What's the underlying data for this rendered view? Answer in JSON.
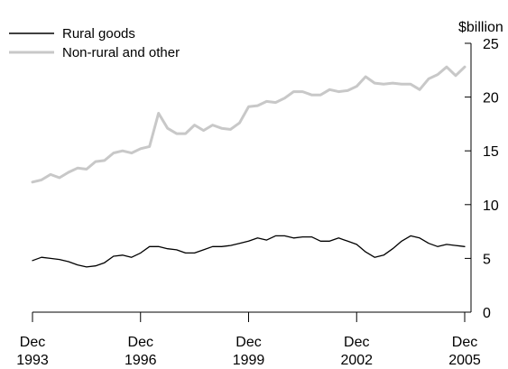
{
  "chart_data": {
    "type": "line",
    "ylabel": "$billion",
    "ylim": [
      0,
      25
    ],
    "yticks": [
      0,
      5,
      10,
      15,
      20,
      25
    ],
    "xticks": [
      {
        "line1": "Dec",
        "line2": "1993"
      },
      {
        "line1": "Dec",
        "line2": "1996"
      },
      {
        "line1": "Dec",
        "line2": "1999"
      },
      {
        "line1": "Dec",
        "line2": "2002"
      },
      {
        "line1": "Dec",
        "line2": "2005"
      }
    ],
    "x_start": "Dec 1993",
    "x_end": "Dec 2005",
    "x_frequency": "quarterly",
    "legend_position": "top-left",
    "series": [
      {
        "name": "Rural goods",
        "color": "#000000",
        "values": [
          4.8,
          5.1,
          5.0,
          4.9,
          4.7,
          4.4,
          4.2,
          4.3,
          4.6,
          5.2,
          5.3,
          5.1,
          5.5,
          6.1,
          6.1,
          5.9,
          5.8,
          5.5,
          5.5,
          5.8,
          6.1,
          6.1,
          6.2,
          6.4,
          6.6,
          6.9,
          6.7,
          7.1,
          7.1,
          6.9,
          7.0,
          7.0,
          6.6,
          6.6,
          6.9,
          6.6,
          6.3,
          5.6,
          5.1,
          5.3,
          5.9,
          6.6,
          7.1,
          6.9,
          6.4,
          6.1,
          6.3,
          6.2,
          6.1
        ]
      },
      {
        "name": "Non-rural and other",
        "color": "#c8c8c8",
        "values": [
          12.1,
          12.3,
          12.8,
          12.5,
          13.0,
          13.4,
          13.3,
          14.0,
          14.1,
          14.8,
          15.0,
          14.8,
          15.2,
          15.4,
          18.5,
          17.1,
          16.6,
          16.6,
          17.4,
          16.9,
          17.4,
          17.1,
          17.0,
          17.6,
          19.1,
          19.2,
          19.6,
          19.5,
          19.9,
          20.5,
          20.5,
          20.2,
          20.2,
          20.7,
          20.5,
          20.6,
          21.0,
          21.9,
          21.3,
          21.2,
          21.3,
          21.2,
          21.2,
          20.7,
          21.7,
          22.1,
          22.8,
          22.0,
          22.8
        ]
      }
    ]
  }
}
